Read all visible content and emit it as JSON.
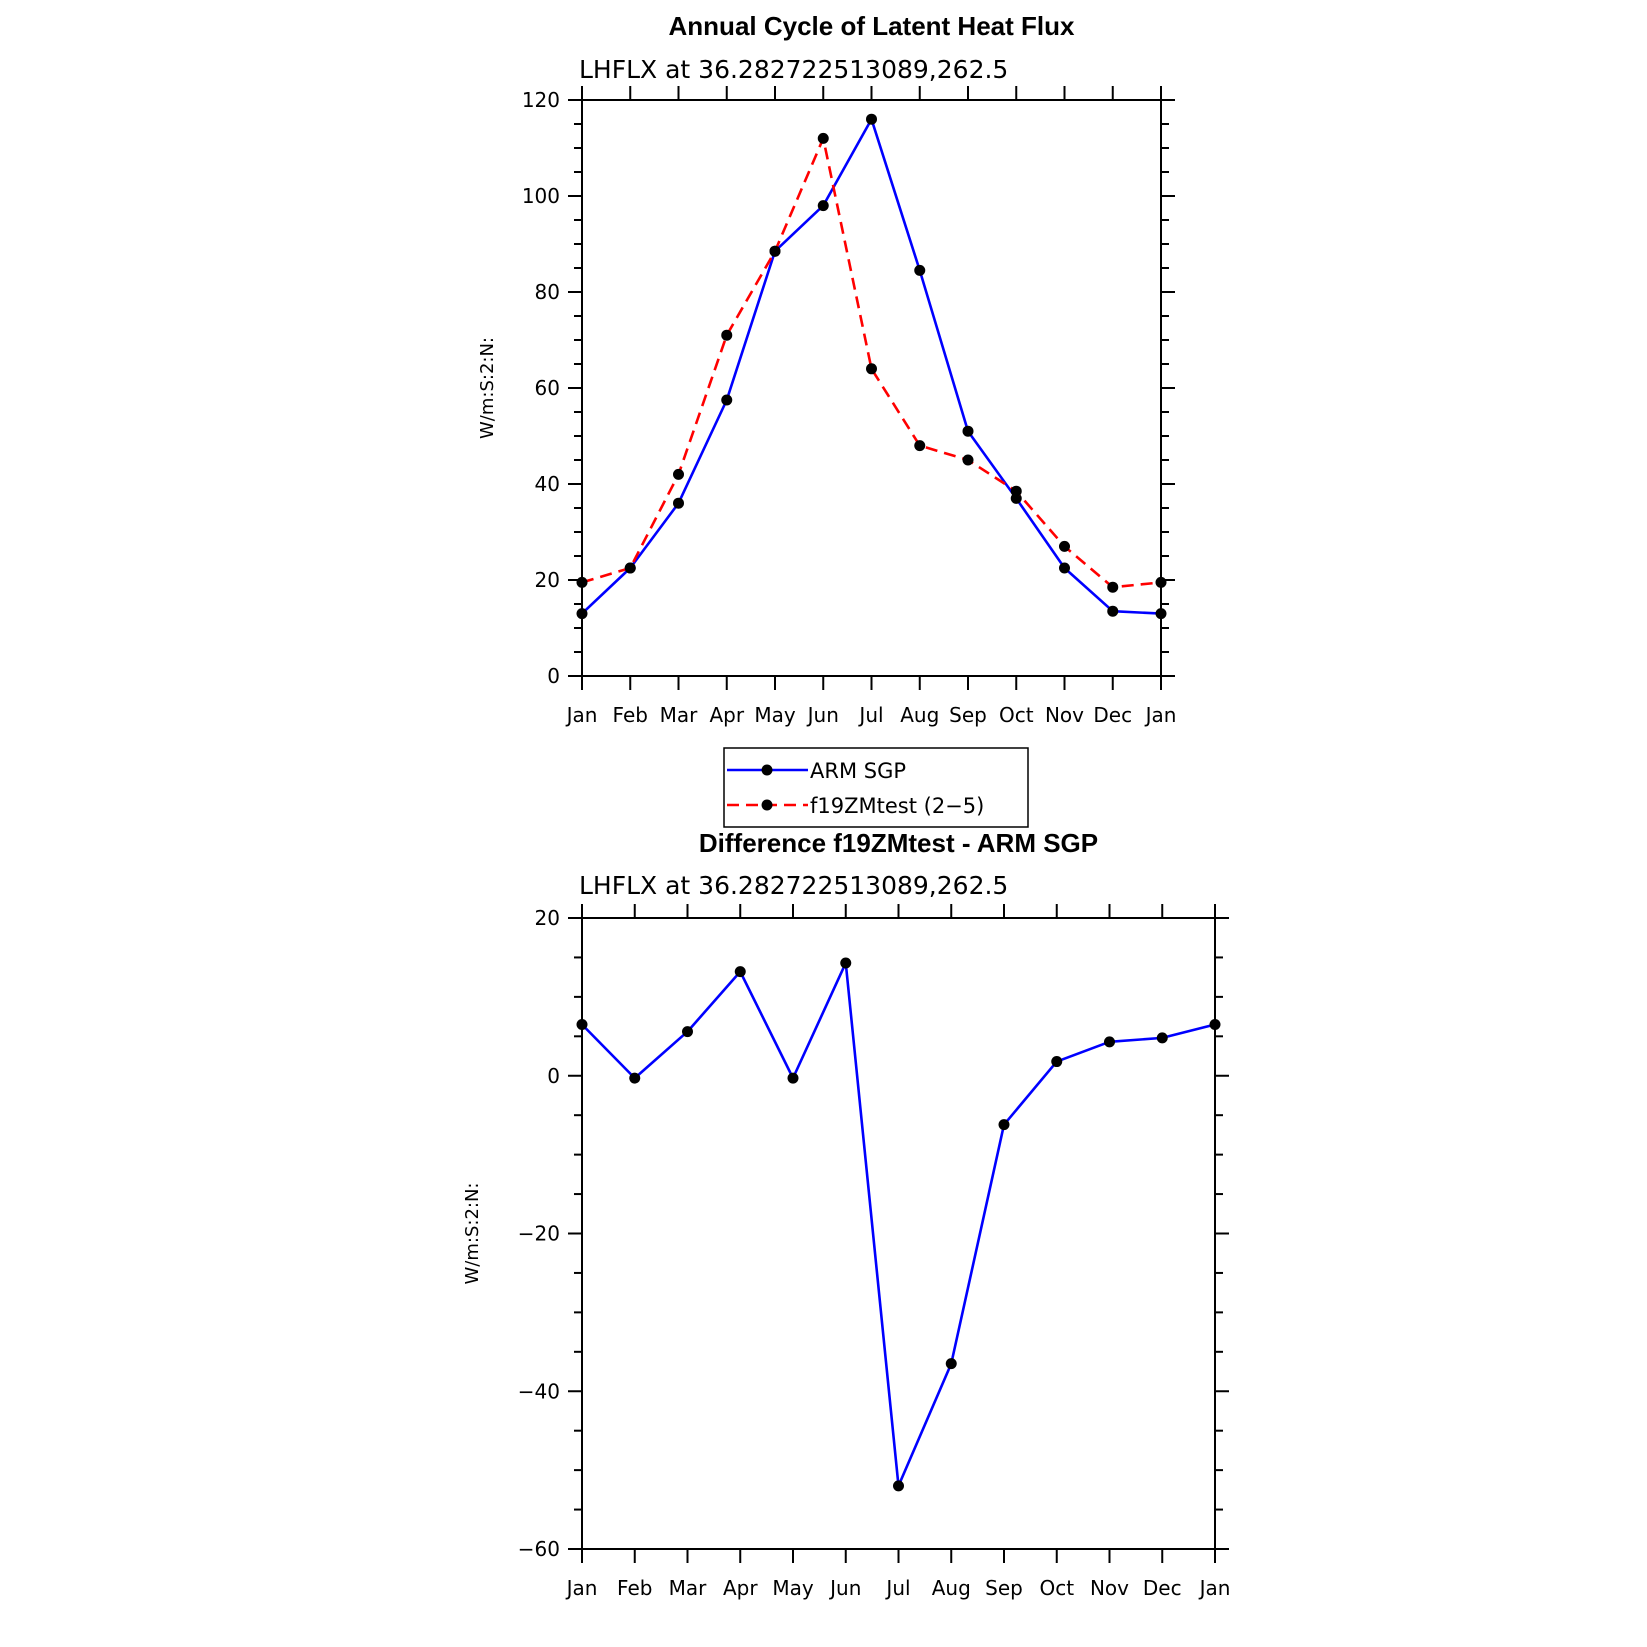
{
  "chart_data": [
    {
      "type": "line",
      "title": "Annual Cycle of Latent Heat Flux",
      "subtitle": "LHFLX at 36.282722513089,262.5",
      "ylabel": "W/m:S:2:N:",
      "xlabel": "",
      "categories": [
        "Jan",
        "Feb",
        "Mar",
        "Apr",
        "May",
        "Jun",
        "Jul",
        "Aug",
        "Sep",
        "Oct",
        "Nov",
        "Dec",
        "Jan"
      ],
      "ylim": [
        0,
        120
      ],
      "yticks": [
        0,
        20,
        40,
        60,
        80,
        100,
        120
      ],
      "ytick_labels": [
        "0",
        "20",
        "40",
        "60",
        "80",
        "100",
        "120"
      ],
      "series": [
        {
          "name": "ARM SGP",
          "color": "#0000ff",
          "dash": "solid",
          "values": [
            13,
            22.5,
            36,
            57.5,
            88.5,
            98,
            116,
            84.5,
            51,
            37,
            22.5,
            13.5,
            13
          ]
        },
        {
          "name": "f19ZMtest (2-5)",
          "color": "#ff0000",
          "dash": "dashed",
          "values": [
            19.5,
            22.5,
            42,
            71,
            88.5,
            112,
            64,
            48,
            45,
            38.5,
            27,
            18.5,
            19.5
          ]
        }
      ],
      "legend": {
        "placement": "below",
        "entries": [
          "ARM SGP",
          "f19ZMtest (2−5)"
        ]
      },
      "grid": false
    },
    {
      "type": "line",
      "title": "Difference f19ZMtest - ARM SGP",
      "subtitle": "LHFLX at 36.282722513089,262.5",
      "ylabel": "W/m:S:2:N:",
      "xlabel": "",
      "categories": [
        "Jan",
        "Feb",
        "Mar",
        "Apr",
        "May",
        "Jun",
        "Jul",
        "Aug",
        "Sep",
        "Oct",
        "Nov",
        "Dec",
        "Jan"
      ],
      "ylim": [
        -60,
        20
      ],
      "yticks": [
        -60,
        -40,
        -20,
        0,
        20
      ],
      "ytick_labels": [
        "−60",
        "−40",
        "−20",
        "0",
        "20"
      ],
      "series": [
        {
          "name": "",
          "color": "#0000ff",
          "dash": "solid",
          "values": [
            6.5,
            -0.3,
            5.6,
            13.2,
            -0.3,
            14.3,
            -52,
            -36.5,
            -6.2,
            1.8,
            4.3,
            4.8,
            6.5
          ]
        }
      ],
      "grid": false
    }
  ]
}
